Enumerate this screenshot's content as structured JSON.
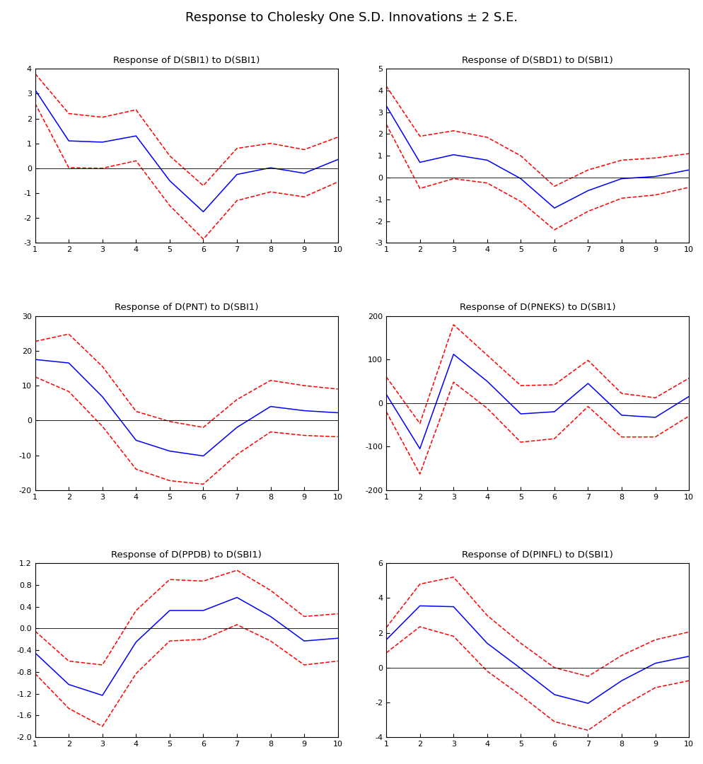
{
  "title": "Response to Cholesky One S.D. Innovations ± 2 S.E.",
  "chart_data": [
    {
      "type": "line",
      "title": "Response of D(SBI1) to D(SBI1)",
      "x": [
        1,
        2,
        3,
        4,
        5,
        6,
        7,
        8,
        9,
        10
      ],
      "xlim": [
        1,
        10
      ],
      "xticks": [
        1,
        2,
        3,
        4,
        5,
        6,
        7,
        8,
        9,
        10
      ],
      "ylim": [
        -3,
        4
      ],
      "yticks": [
        -3,
        -2,
        -1,
        0,
        1,
        2,
        3,
        4
      ],
      "series": [
        {
          "color": "#0000ff",
          "line_style": "solid",
          "values": [
            3.15,
            1.1,
            1.05,
            1.3,
            -0.5,
            -1.75,
            -0.25,
            0.02,
            -0.2,
            0.35
          ]
        },
        {
          "color": "#ff0000",
          "line_style": "dashed",
          "values": [
            3.8,
            2.2,
            2.05,
            2.35,
            0.5,
            -0.7,
            0.8,
            1.0,
            0.75,
            1.25
          ]
        },
        {
          "color": "#ff0000",
          "line_style": "dashed",
          "values": [
            2.6,
            0.02,
            0.0,
            0.3,
            -1.5,
            -2.85,
            -1.3,
            -0.95,
            -1.15,
            -0.55
          ]
        }
      ]
    },
    {
      "type": "line",
      "title": "Response of D(SBD1) to D(SBI1)",
      "x": [
        1,
        2,
        3,
        4,
        5,
        6,
        7,
        8,
        9,
        10
      ],
      "xlim": [
        1,
        10
      ],
      "xticks": [
        1,
        2,
        3,
        4,
        5,
        6,
        7,
        8,
        9,
        10
      ],
      "ylim": [
        -3,
        5
      ],
      "yticks": [
        -3,
        -2,
        -1,
        0,
        1,
        2,
        3,
        4,
        5
      ],
      "series": [
        {
          "color": "#0000ff",
          "line_style": "solid",
          "values": [
            3.3,
            0.7,
            1.05,
            0.8,
            -0.05,
            -1.4,
            -0.6,
            -0.05,
            0.05,
            0.35
          ]
        },
        {
          "color": "#ff0000",
          "line_style": "dashed",
          "values": [
            4.2,
            1.9,
            2.15,
            1.85,
            1.0,
            -0.4,
            0.35,
            0.8,
            0.9,
            1.1
          ]
        },
        {
          "color": "#ff0000",
          "line_style": "dashed",
          "values": [
            2.45,
            -0.5,
            -0.05,
            -0.25,
            -1.1,
            -2.4,
            -1.55,
            -0.95,
            -0.8,
            -0.45
          ]
        }
      ]
    },
    {
      "type": "line",
      "title": "Response of D(PNT) to D(SBI1)",
      "x": [
        1,
        2,
        3,
        4,
        5,
        6,
        7,
        8,
        9,
        10
      ],
      "xlim": [
        1,
        10
      ],
      "xticks": [
        1,
        2,
        3,
        4,
        5,
        6,
        7,
        8,
        9,
        10
      ],
      "ylim": [
        -20,
        30
      ],
      "yticks": [
        -20,
        -10,
        0,
        10,
        20,
        30
      ],
      "series": [
        {
          "color": "#0000ff",
          "line_style": "solid",
          "values": [
            17.5,
            16.5,
            6.8,
            -5.7,
            -8.8,
            -10.2,
            -2,
            4,
            2.8,
            2.2
          ]
        },
        {
          "color": "#ff0000",
          "line_style": "dashed",
          "values": [
            22.7,
            24.8,
            15.5,
            2.6,
            -0.3,
            -2,
            6,
            11.5,
            10,
            9
          ]
        },
        {
          "color": "#ff0000",
          "line_style": "dashed",
          "values": [
            12.5,
            8.3,
            -1.7,
            -14,
            -17.3,
            -18.3,
            -9.8,
            -3.3,
            -4.3,
            -4.7
          ]
        }
      ]
    },
    {
      "type": "line",
      "title": "Response of D(PNEKS) to D(SBI1)",
      "x": [
        1,
        2,
        3,
        4,
        5,
        6,
        7,
        8,
        9,
        10
      ],
      "xlim": [
        1,
        10
      ],
      "xticks": [
        1,
        2,
        3,
        4,
        5,
        6,
        7,
        8,
        9,
        10
      ],
      "ylim": [
        -200,
        200
      ],
      "yticks": [
        -200,
        -100,
        0,
        100,
        200
      ],
      "series": [
        {
          "color": "#0000ff",
          "line_style": "solid",
          "values": [
            20,
            -105,
            112,
            50,
            -25,
            -20,
            45,
            -28,
            -33,
            15
          ]
        },
        {
          "color": "#ff0000",
          "line_style": "dashed",
          "values": [
            60,
            -47,
            180,
            110,
            40,
            42,
            98,
            22,
            12,
            57
          ]
        },
        {
          "color": "#ff0000",
          "line_style": "dashed",
          "values": [
            -20,
            -163,
            48,
            -12,
            -90,
            -82,
            -8,
            -78,
            -78,
            -30
          ]
        }
      ]
    },
    {
      "type": "line",
      "title": "Response of D(PPDB) to D(SBI1)",
      "x": [
        1,
        2,
        3,
        4,
        5,
        6,
        7,
        8,
        9,
        10
      ],
      "xlim": [
        1,
        10
      ],
      "xticks": [
        1,
        2,
        3,
        4,
        5,
        6,
        7,
        8,
        9,
        10
      ],
      "ylim": [
        -2.0,
        1.2
      ],
      "yticks": [
        -2.0,
        -1.6,
        -1.2,
        -0.8,
        -0.4,
        0.0,
        0.4,
        0.8,
        1.2
      ],
      "series": [
        {
          "color": "#0000ff",
          "line_style": "solid",
          "values": [
            -0.45,
            -1.03,
            -1.23,
            -0.25,
            0.33,
            0.33,
            0.57,
            0.22,
            -0.23,
            -0.18
          ]
        },
        {
          "color": "#ff0000",
          "line_style": "dashed",
          "values": [
            -0.05,
            -0.6,
            -0.67,
            0.33,
            0.9,
            0.87,
            1.07,
            0.7,
            0.22,
            0.27
          ]
        },
        {
          "color": "#ff0000",
          "line_style": "dashed",
          "values": [
            -0.83,
            -1.47,
            -1.8,
            -0.83,
            -0.23,
            -0.2,
            0.07,
            -0.23,
            -0.67,
            -0.6
          ]
        }
      ]
    },
    {
      "type": "line",
      "title": "Response of D(PINFL) to D(SBI1)",
      "x": [
        1,
        2,
        3,
        4,
        5,
        6,
        7,
        8,
        9,
        10
      ],
      "xlim": [
        1,
        10
      ],
      "xticks": [
        1,
        2,
        3,
        4,
        5,
        6,
        7,
        8,
        9,
        10
      ],
      "ylim": [
        -4,
        6
      ],
      "yticks": [
        -4,
        -2,
        0,
        2,
        4,
        6
      ],
      "series": [
        {
          "color": "#0000ff",
          "line_style": "solid",
          "values": [
            1.6,
            3.55,
            3.5,
            1.4,
            -0.05,
            -1.55,
            -2.05,
            -0.75,
            0.25,
            0.65
          ]
        },
        {
          "color": "#ff0000",
          "line_style": "dashed",
          "values": [
            2.3,
            4.8,
            5.2,
            3.0,
            1.4,
            0,
            -0.5,
            0.7,
            1.6,
            2.05
          ]
        },
        {
          "color": "#ff0000",
          "line_style": "dashed",
          "values": [
            0.85,
            2.35,
            1.8,
            -0.2,
            -1.6,
            -3.1,
            -3.6,
            -2.25,
            -1.15,
            -0.75
          ]
        }
      ]
    }
  ]
}
